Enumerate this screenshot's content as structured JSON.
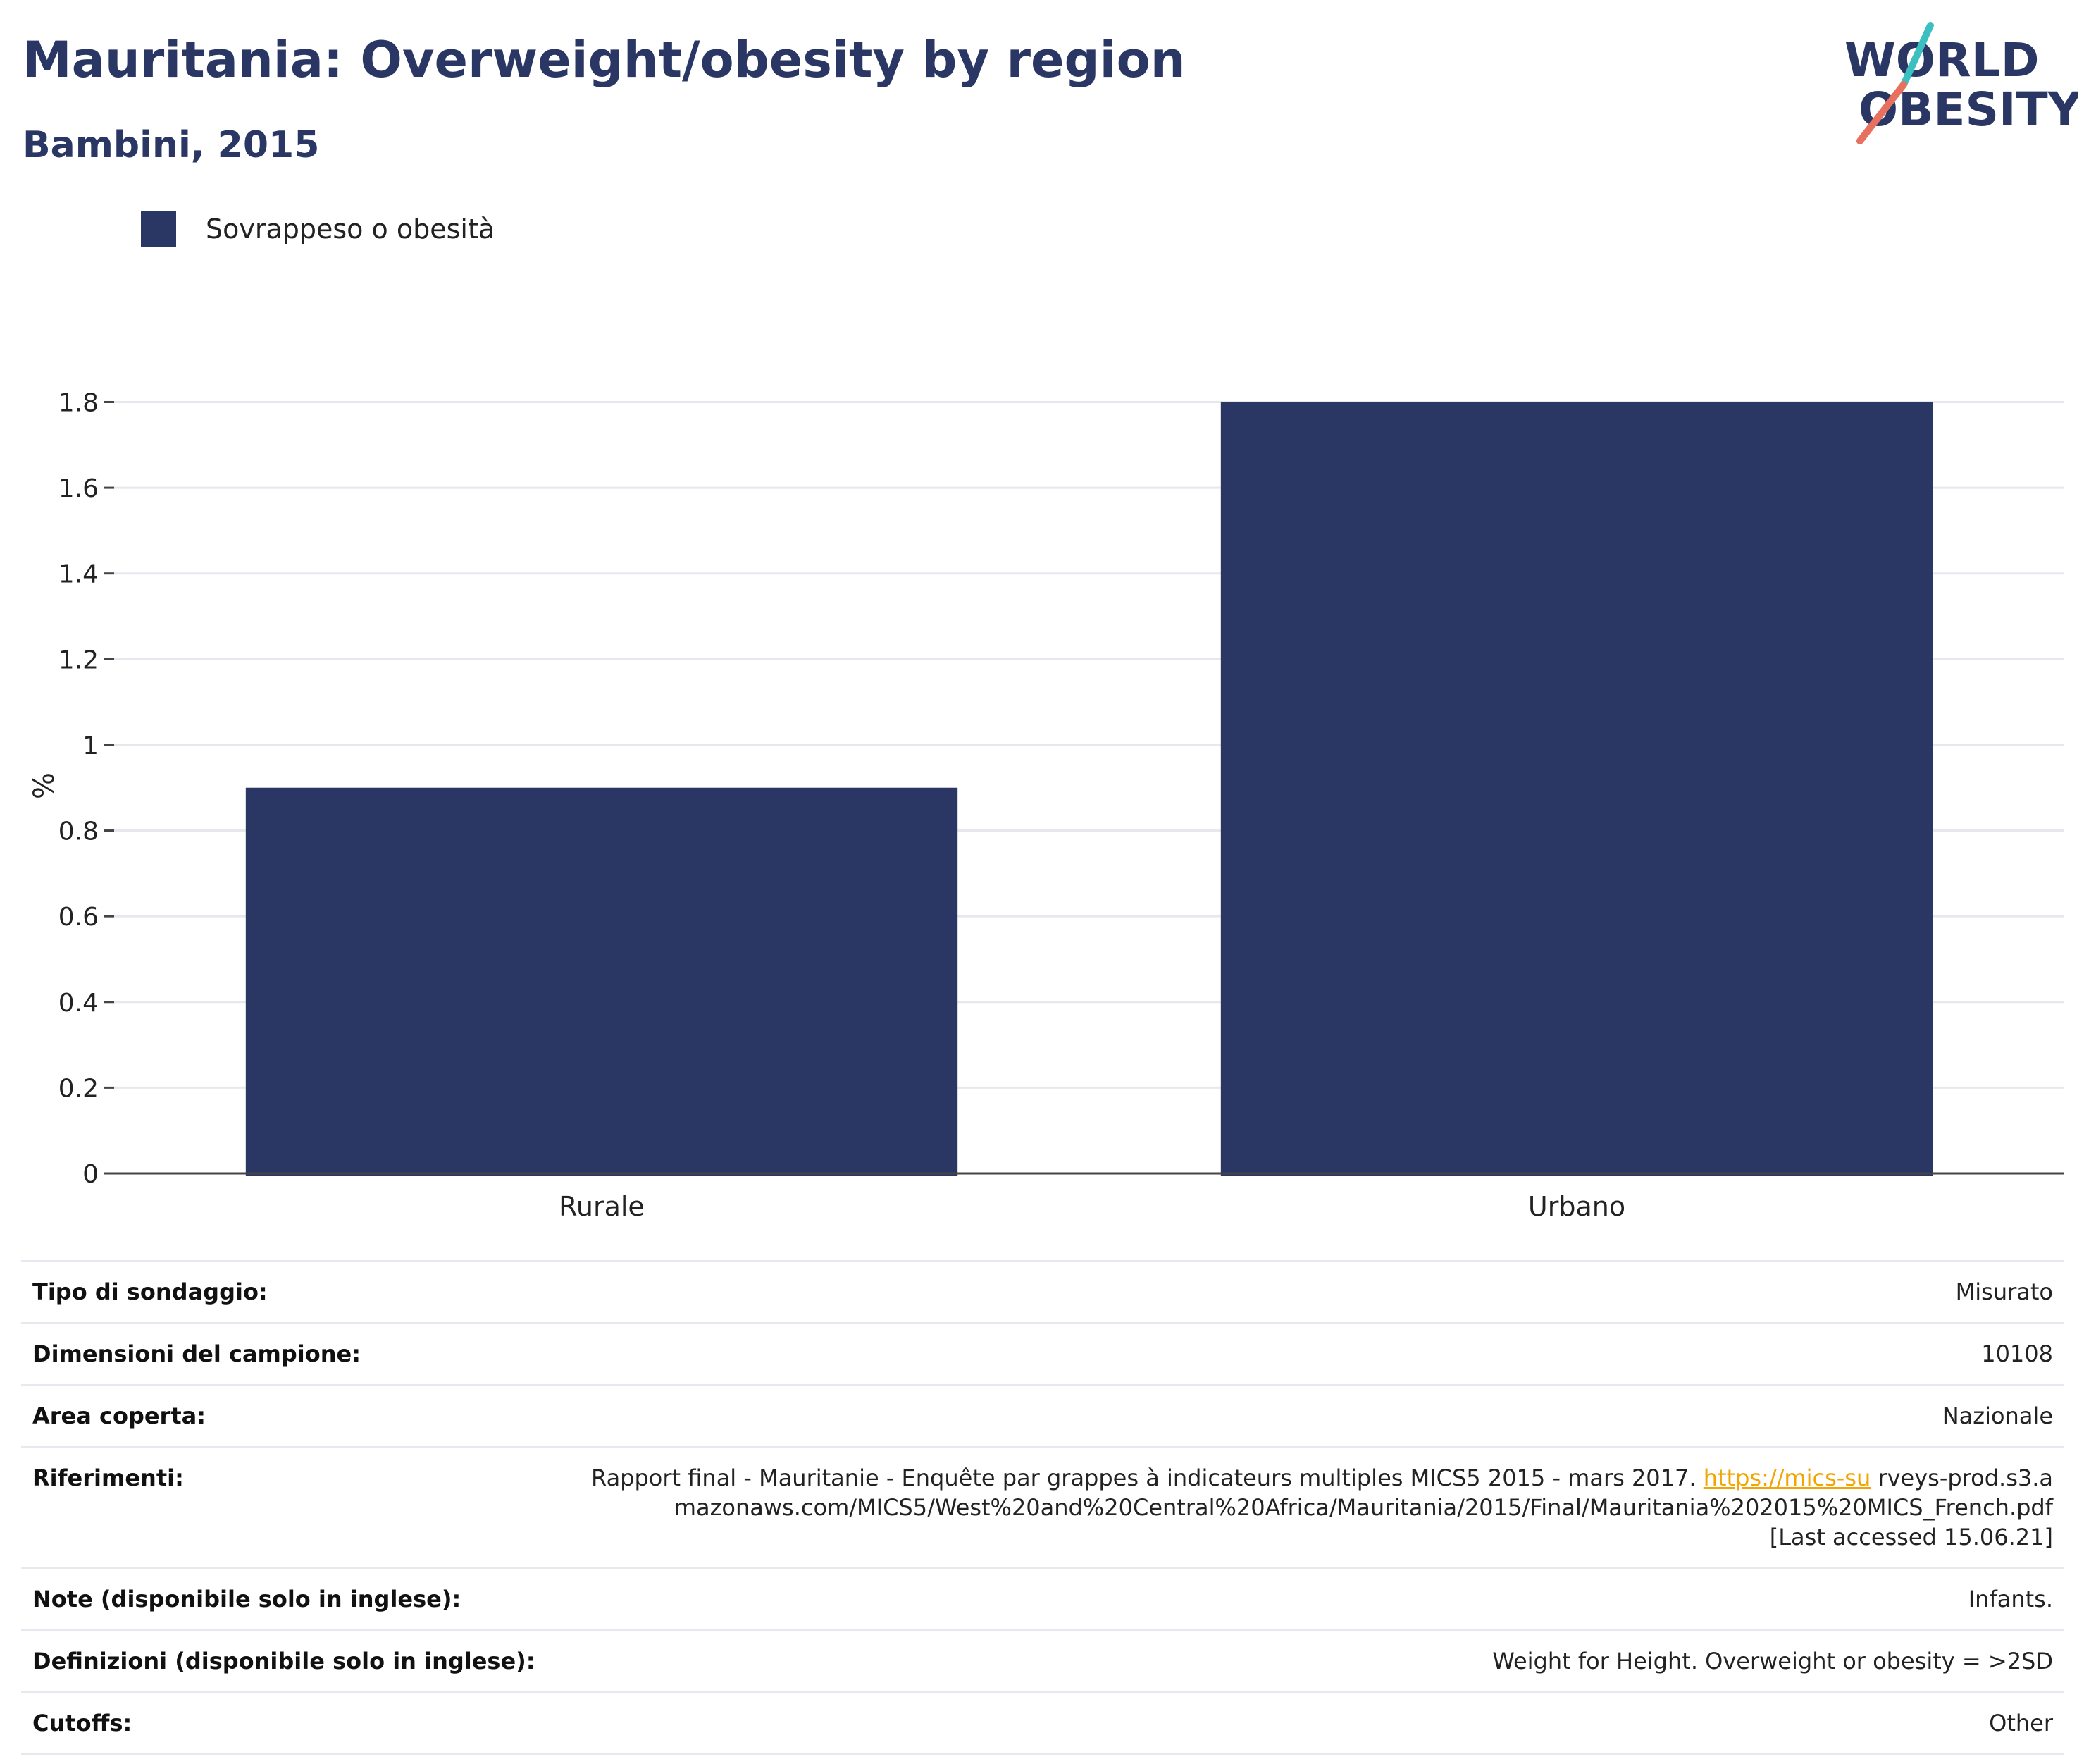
{
  "header": {
    "title": "Mauritania: Overweight/obesity by region",
    "subtitle": "Bambini, 2015"
  },
  "logo": {
    "line1": "WORLD",
    "line2": "OBESITY",
    "colors": {
      "navy": "#2a3663",
      "teal": "#3bbfc0",
      "coral": "#e8705e"
    }
  },
  "legend": {
    "label": "Sovrappeso o obesità",
    "color": "#2a3663"
  },
  "chart_data": {
    "type": "bar",
    "categories": [
      "Rurale",
      "Urbano"
    ],
    "series": [
      {
        "name": "Sovrappeso o obesità",
        "values": [
          0.9,
          1.8
        ],
        "color": "#2a3663"
      }
    ],
    "ylabel": "%",
    "xlabel": "",
    "ylim": [
      0,
      1.8
    ],
    "yticks": [
      0,
      0.2,
      0.4,
      0.6,
      0.8,
      1,
      1.2,
      1.4,
      1.6,
      1.8
    ],
    "ytick_labels": [
      "0",
      "0.2",
      "0.4",
      "0.6",
      "0.8",
      "1",
      "1.2",
      "1.4",
      "1.6",
      "1.8"
    ],
    "grid": true,
    "legend_position": "top-left"
  },
  "info": {
    "survey_type": {
      "label": "Tipo di sondaggio:",
      "value": "Misurato"
    },
    "sample_size": {
      "label": "Dimensioni del campione:",
      "value": "10108"
    },
    "area": {
      "label": "Area coperta:",
      "value": "Nazionale"
    },
    "references": {
      "label": "Riferimenti:",
      "text": "Rapport final - Mauritanie - Enquête par grappes à indicateurs multiples MICS5 2015 - mars 2017.",
      "link": "https://mics-su",
      "rest": "rveys-prod.s3.amazonaws.com/MICS5/West%20and%20Central%20Africa/Mauritania/2015/Final/Mauritania%202015%20MICS_French.pdf",
      "accessed": "[Last accessed 15.06.21]"
    },
    "notes": {
      "label": "Note (disponibile solo in inglese):",
      "value": "Infants."
    },
    "definitions": {
      "label": "Definizioni (disponibile solo in inglese):",
      "value": "Weight for Height. Overweight or obesity = >2SD"
    },
    "cutoffs": {
      "label": "Cutoffs:",
      "value": "Other"
    }
  }
}
